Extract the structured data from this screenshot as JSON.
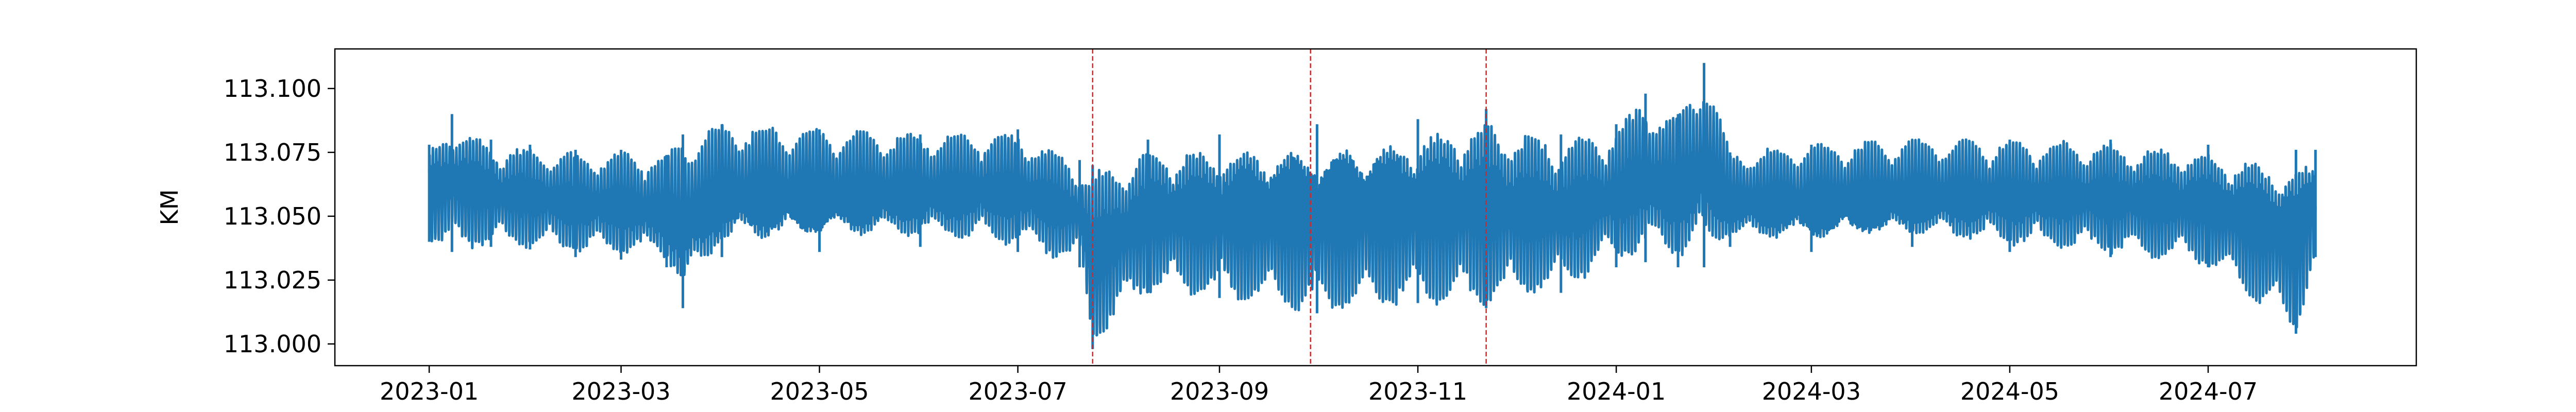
{
  "chart_data": {
    "type": "line",
    "title": "",
    "xlabel": "",
    "ylabel": "KM",
    "xlim": [
      "2022-12-03",
      "2024-09-03"
    ],
    "ylim": [
      112.9915,
      113.1155
    ],
    "x_ticks": [
      "2023-01",
      "2023-03",
      "2023-05",
      "2023-07",
      "2023-09",
      "2023-11",
      "2024-01",
      "2024-03",
      "2024-05",
      "2024-07"
    ],
    "y_ticks": [
      "113.000",
      "113.025",
      "113.050",
      "113.075",
      "113.100"
    ],
    "grid": false,
    "series": [
      {
        "color": "#1f77b4",
        "x_start": "2023-01-01",
        "x_end": "2024-08-03",
        "description_free": true,
        "envelope": [
          {
            "x": "2023-01-01",
            "low": 113.04,
            "high": 113.078
          },
          {
            "x": "2023-01-08",
            "low": 113.036,
            "high": 113.09
          },
          {
            "x": "2023-01-20",
            "low": 113.038,
            "high": 113.08
          },
          {
            "x": "2023-02-01",
            "low": 113.037,
            "high": 113.078
          },
          {
            "x": "2023-02-15",
            "low": 113.034,
            "high": 113.076
          },
          {
            "x": "2023-03-01",
            "low": 113.033,
            "high": 113.076
          },
          {
            "x": "2023-03-15",
            "low": 113.03,
            "high": 113.074
          },
          {
            "x": "2023-03-20",
            "low": 113.014,
            "high": 113.082
          },
          {
            "x": "2023-04-01",
            "low": 113.034,
            "high": 113.086
          },
          {
            "x": "2023-05-01",
            "low": 113.036,
            "high": 113.084
          },
          {
            "x": "2023-06-01",
            "low": 113.038,
            "high": 113.082
          },
          {
            "x": "2023-07-01",
            "low": 113.036,
            "high": 113.084
          },
          {
            "x": "2023-07-20",
            "low": 113.03,
            "high": 113.072
          },
          {
            "x": "2023-07-24",
            "low": 112.998,
            "high": 113.07
          },
          {
            "x": "2023-08-10",
            "low": 113.02,
            "high": 113.08
          },
          {
            "x": "2023-09-01",
            "low": 113.018,
            "high": 113.082
          },
          {
            "x": "2023-10-01",
            "low": 113.012,
            "high": 113.086
          },
          {
            "x": "2023-11-01",
            "low": 113.016,
            "high": 113.088
          },
          {
            "x": "2023-11-22",
            "low": 113.014,
            "high": 113.092
          },
          {
            "x": "2023-12-15",
            "low": 113.02,
            "high": 113.082
          },
          {
            "x": "2024-01-01",
            "low": 113.03,
            "high": 113.086
          },
          {
            "x": "2024-01-10",
            "low": 113.032,
            "high": 113.098
          },
          {
            "x": "2024-01-20",
            "low": 113.03,
            "high": 113.09
          },
          {
            "x": "2024-01-28",
            "low": 113.03,
            "high": 113.11
          },
          {
            "x": "2024-02-05",
            "low": 113.038,
            "high": 113.075
          },
          {
            "x": "2024-03-01",
            "low": 113.036,
            "high": 113.078
          },
          {
            "x": "2024-04-01",
            "low": 113.038,
            "high": 113.08
          },
          {
            "x": "2024-05-01",
            "low": 113.036,
            "high": 113.08
          },
          {
            "x": "2024-06-01",
            "low": 113.034,
            "high": 113.08
          },
          {
            "x": "2024-07-01",
            "low": 113.03,
            "high": 113.078
          },
          {
            "x": "2024-07-28",
            "low": 113.004,
            "high": 113.076
          },
          {
            "x": "2024-08-03",
            "low": 113.034,
            "high": 113.076
          }
        ]
      }
    ],
    "vlines": [
      {
        "x": "2023-07-24",
        "color": "#d62728",
        "style": "dashed"
      },
      {
        "x": "2023-09-29",
        "color": "#d62728",
        "style": "dashed"
      },
      {
        "x": "2023-11-22",
        "color": "#d62728",
        "style": "dashed"
      }
    ]
  }
}
